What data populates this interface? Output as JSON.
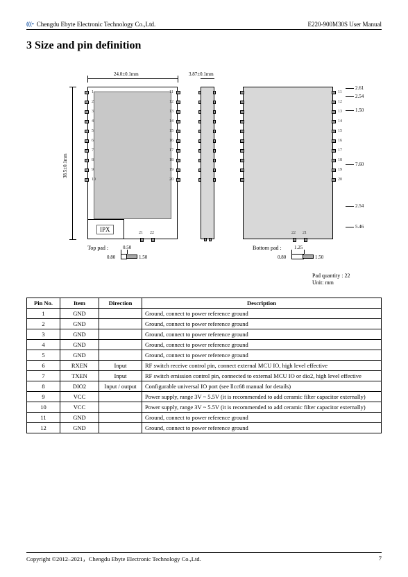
{
  "header": {
    "company": "Chengdu Ebyte Electronic Technology Co.,Ltd.",
    "doc": "E220-900M30S User Manual",
    "logo": "EBYTE"
  },
  "section_title": "3 Size and pin definition",
  "diagram": {
    "width_label": "24.0±0.1mm",
    "thickness_label": "3.87±0.1mm",
    "height_label": "38.5±0.1mm",
    "ipx": "IPX",
    "top_pad_label": "Top pad :",
    "bottom_pad_label": "Bottom pad :",
    "top_pad_w": "0.50",
    "top_pad_h": "0.80",
    "top_pad_l": "1.50",
    "bottom_pad_w": "1.25",
    "bottom_pad_h": "0.80",
    "bottom_pad_l": "1.50",
    "pad_qty": "Pad quantity : 22",
    "unit": "Unit:  mm",
    "back_dims": [
      "2.61",
      "2.54",
      "1.50",
      "7.60",
      "2.54",
      "5.46"
    ],
    "front_pins_left": [
      "1",
      "2",
      "3",
      "4",
      "5",
      "6",
      "7",
      "8",
      "9",
      "10"
    ],
    "front_pins_right": [
      "11",
      "12",
      "13",
      "14",
      "15",
      "16",
      "17",
      "18",
      "19",
      "20"
    ],
    "front_pins_bottom": [
      "21",
      "22"
    ],
    "back_pins_right": [
      "11",
      "12",
      "13",
      "14",
      "15",
      "16",
      "17",
      "18",
      "19",
      "20"
    ],
    "back_pins_bottom": [
      "21",
      "22"
    ]
  },
  "table": {
    "headers": [
      "Pin No.",
      "Item",
      "Direction",
      "Description"
    ],
    "rows": [
      [
        "1",
        "GND",
        "",
        "Ground, connect to power reference ground"
      ],
      [
        "2",
        "GND",
        "",
        "Ground, connect to power reference ground"
      ],
      [
        "3",
        "GND",
        "",
        "Ground, connect to power reference ground"
      ],
      [
        "4",
        "GND",
        "",
        "Ground, connect to power reference ground"
      ],
      [
        "5",
        "GND",
        "",
        "Ground, connect to power reference ground"
      ],
      [
        "6",
        "RXEN",
        "Input",
        "RF switch receive control pin, connect external MCU IO, high level effective"
      ],
      [
        "7",
        "TXEN",
        "Input",
        "RF switch emission control pin, connected to external MCU IO or dio2, high level effective"
      ],
      [
        "8",
        "DIO2",
        "Input / output",
        "Configurable universal IO port (see llcc68 manual for details)"
      ],
      [
        "9",
        "VCC",
        "",
        "Power supply, range 3V ~ 5.5V (it is recommended to add ceramic filter capacitor externally)"
      ],
      [
        "10",
        "VCC",
        "",
        "Power supply, range 3V ~ 5.5V (it is recommended to add ceramic filter capacitor externally)"
      ],
      [
        "11",
        "GND",
        "",
        "Ground, connect to power reference ground"
      ],
      [
        "12",
        "GND",
        "",
        "Ground, connect to power reference ground"
      ]
    ],
    "col_widths": [
      "48px",
      "56px",
      "62px",
      "auto"
    ]
  },
  "footer": {
    "copyright": "Copyright ©2012–2021，Chengdu Ebyte Electronic Technology Co.,Ltd.",
    "page": "7"
  }
}
